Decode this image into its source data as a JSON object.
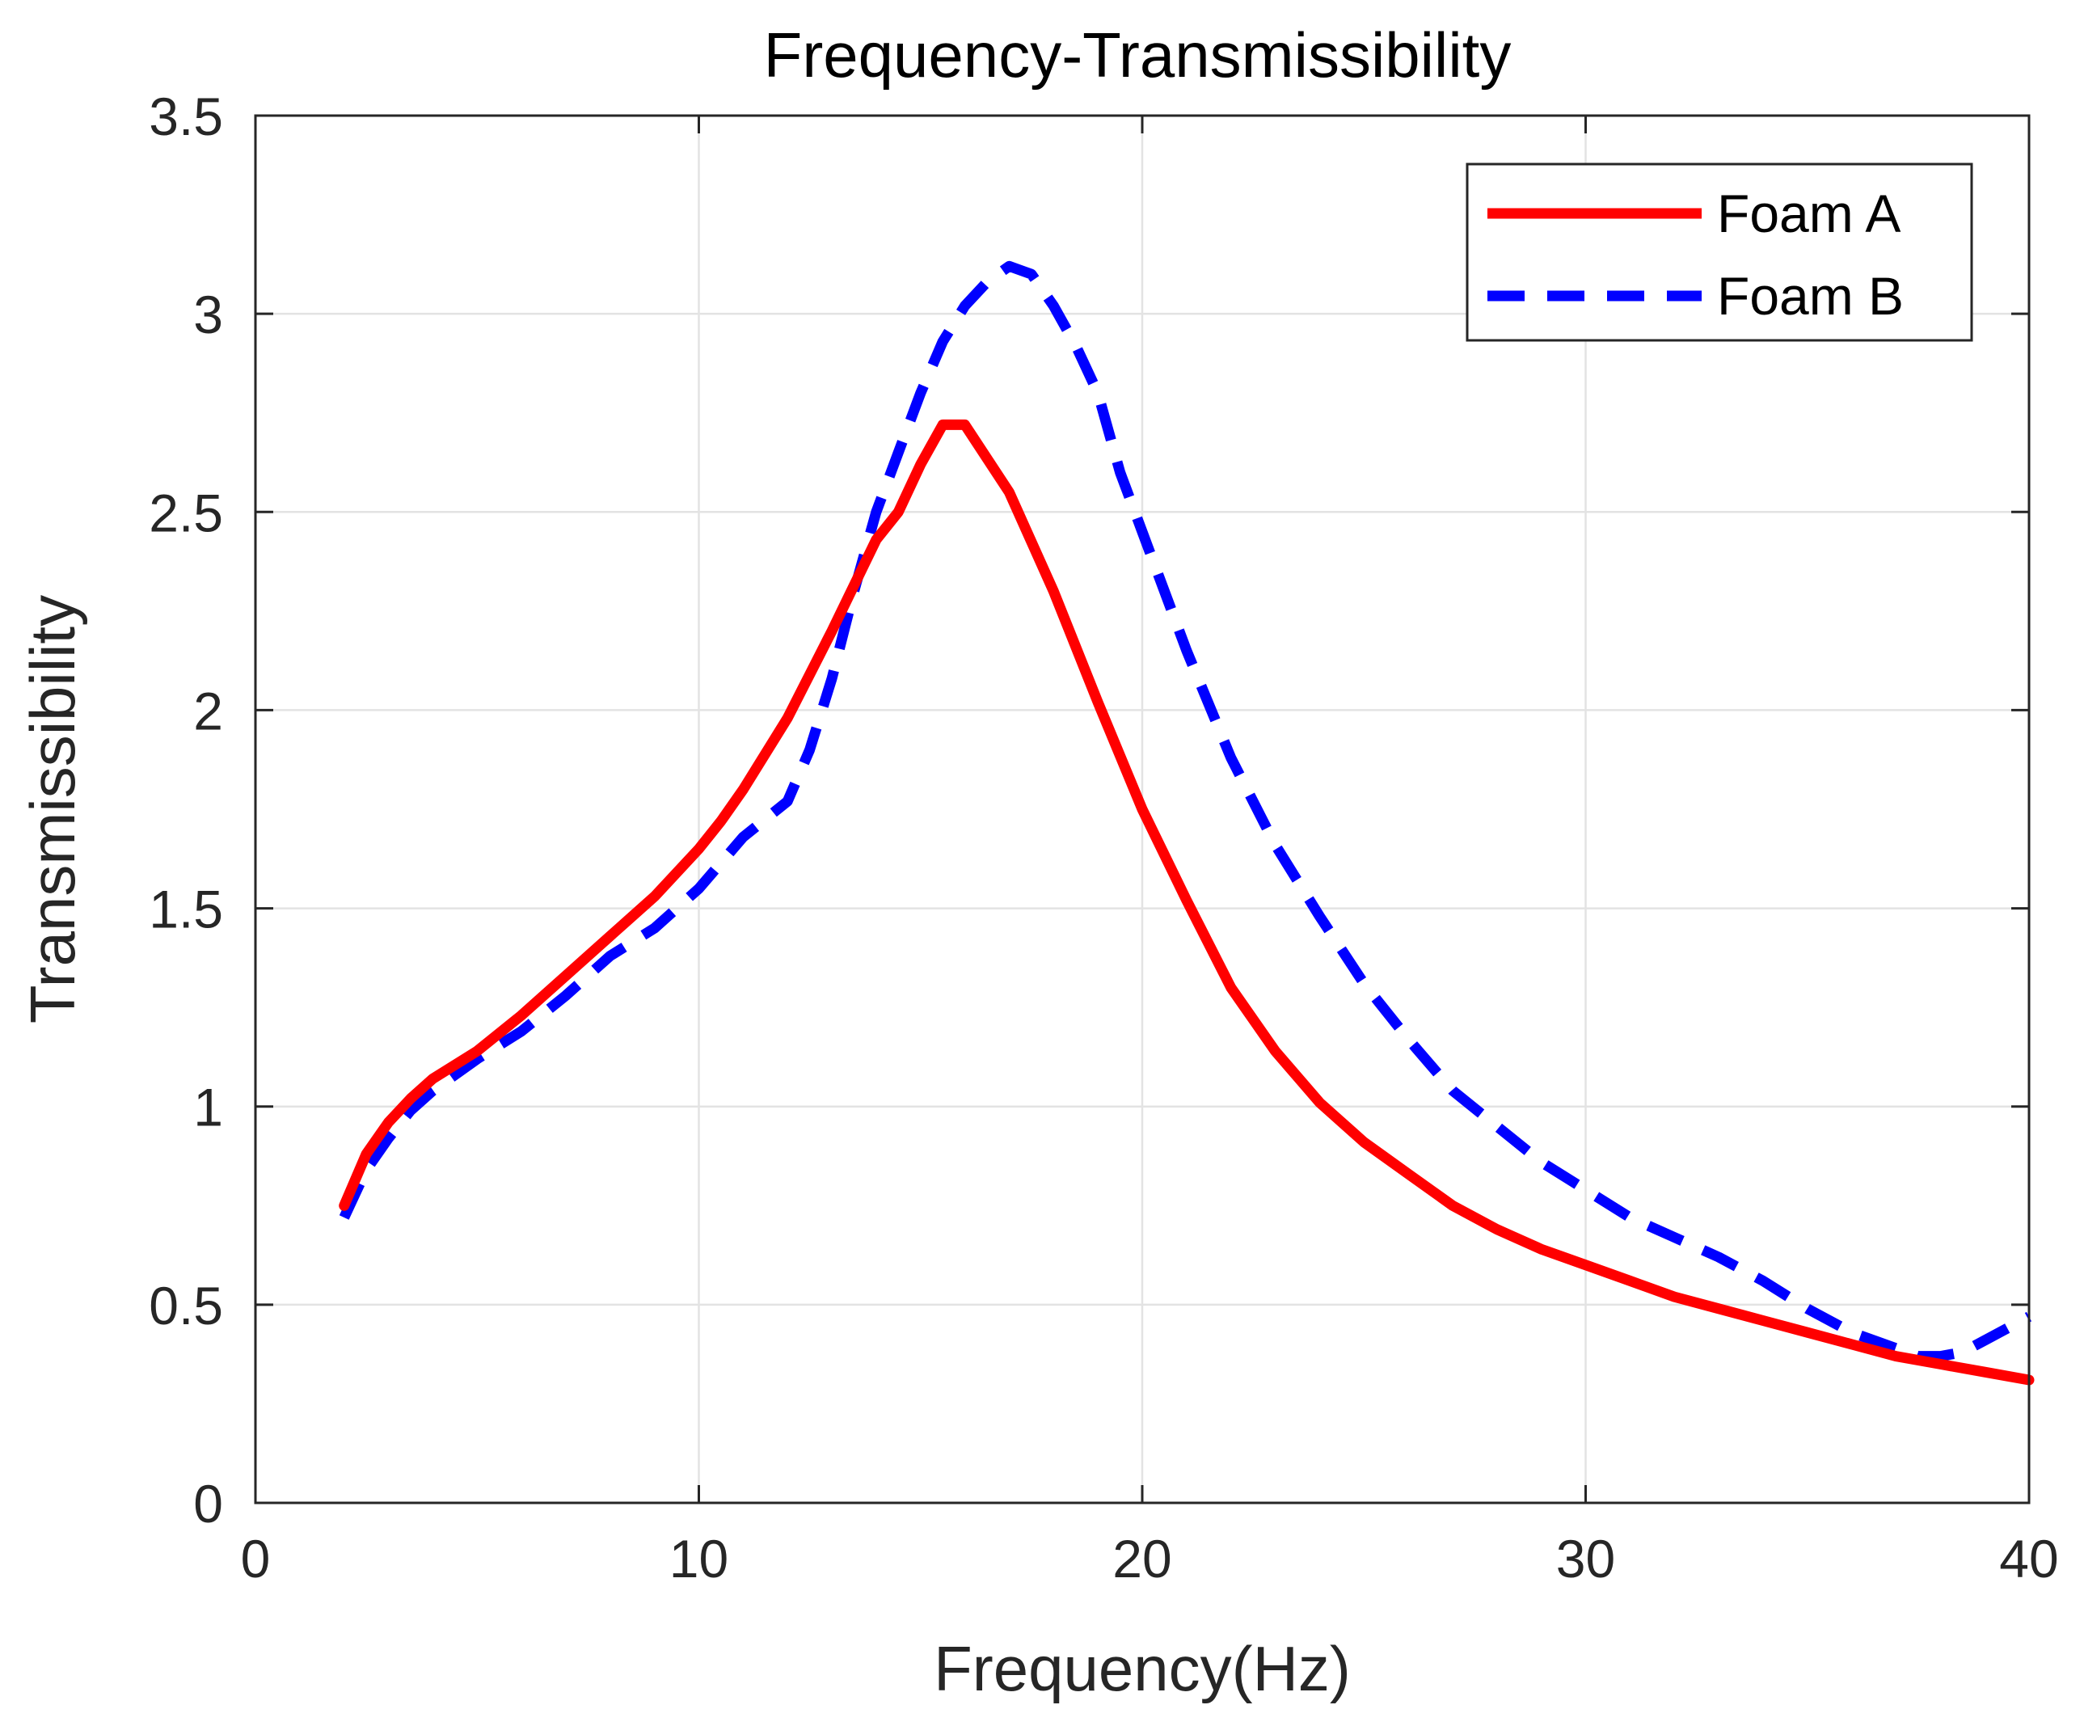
{
  "chart_data": {
    "type": "line",
    "title": "Frequency-Transmissibility",
    "xlabel": "Frequency(Hz)",
    "ylabel": "Transmissibility",
    "xlim": [
      0,
      40
    ],
    "ylim": [
      0,
      3.5
    ],
    "xticks": [
      0,
      10,
      20,
      30,
      40
    ],
    "xtick_labels": [
      "0",
      "10",
      "20",
      "30",
      "40"
    ],
    "yticks": [
      0,
      0.5,
      1,
      1.5,
      2,
      2.5,
      3,
      3.5
    ],
    "ytick_labels": [
      "0",
      "0.5",
      "1",
      "1.5",
      "2",
      "2.5",
      "3",
      "3.5"
    ],
    "grid": true,
    "legend_position": "top-right",
    "series": [
      {
        "name": "Foam A",
        "color": "#ff0000",
        "style": "solid",
        "x": [
          2,
          2.5,
          3,
          3.5,
          4,
          5,
          6,
          7,
          8,
          9,
          10,
          10.5,
          11,
          12,
          13,
          14,
          14.5,
          15,
          15.5,
          16,
          17,
          18,
          19,
          20,
          21,
          22,
          23,
          24,
          25,
          26,
          27,
          28,
          29,
          30,
          31,
          32,
          33,
          34,
          35,
          36,
          37,
          38,
          39,
          40
        ],
        "y": [
          0.75,
          0.88,
          0.96,
          1.02,
          1.07,
          1.14,
          1.23,
          1.33,
          1.43,
          1.53,
          1.65,
          1.72,
          1.8,
          1.98,
          2.2,
          2.43,
          2.5,
          2.62,
          2.72,
          2.72,
          2.55,
          2.3,
          2.02,
          1.75,
          1.52,
          1.3,
          1.14,
          1.01,
          0.91,
          0.83,
          0.75,
          0.69,
          0.64,
          0.6,
          0.56,
          0.52,
          0.49,
          0.46,
          0.43,
          0.4,
          0.37,
          0.35,
          0.33,
          0.31
        ]
      },
      {
        "name": "Foam B",
        "color": "#0000ff",
        "style": "dashed",
        "x": [
          2,
          2.5,
          3,
          3.5,
          4,
          5,
          6,
          7,
          8,
          9,
          10,
          11,
          12,
          12.5,
          13,
          13.5,
          14,
          14.5,
          15,
          15.5,
          16,
          16.5,
          17,
          17.5,
          18,
          18.5,
          19,
          19.5,
          20,
          21,
          22,
          23,
          24,
          25,
          26,
          27,
          28,
          29,
          30,
          31,
          32,
          33,
          34,
          35,
          36,
          37,
          37.5,
          38,
          38.5,
          39,
          40
        ],
        "y": [
          0.72,
          0.84,
          0.92,
          0.99,
          1.04,
          1.12,
          1.19,
          1.28,
          1.38,
          1.45,
          1.55,
          1.68,
          1.77,
          1.9,
          2.08,
          2.3,
          2.5,
          2.65,
          2.8,
          2.93,
          3.02,
          3.08,
          3.12,
          3.1,
          3.02,
          2.92,
          2.8,
          2.6,
          2.45,
          2.15,
          1.88,
          1.66,
          1.48,
          1.31,
          1.17,
          1.04,
          0.95,
          0.86,
          0.79,
          0.72,
          0.67,
          0.62,
          0.56,
          0.49,
          0.43,
          0.39,
          0.37,
          0.37,
          0.38,
          0.41,
          0.47
        ]
      }
    ]
  }
}
